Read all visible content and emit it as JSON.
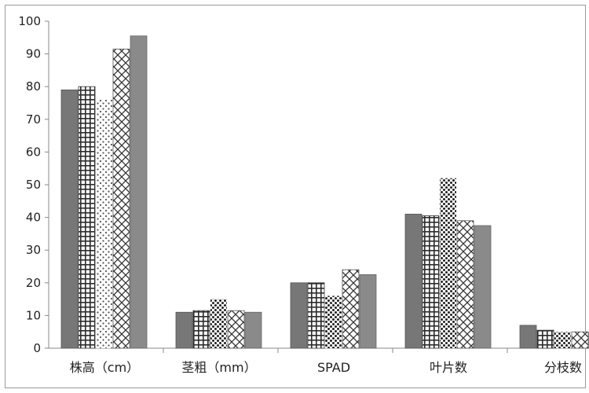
{
  "chart_data": {
    "type": "bar",
    "title": "",
    "xlabel": "",
    "ylabel": "",
    "ylim": [
      0,
      100
    ],
    "yticks": [
      0,
      10,
      20,
      30,
      40,
      50,
      60,
      70,
      80,
      90,
      100
    ],
    "categories": [
      "株高（cm）",
      "茎粗（mm）",
      "SPAD",
      "叶片数",
      "分枝数"
    ],
    "series": [
      {
        "pattern": "solid-dark",
        "color": "#7a7a7a",
        "values": [
          79,
          11,
          20,
          41,
          7
        ]
      },
      {
        "pattern": "grid",
        "color": "#333333",
        "values": [
          80,
          11.5,
          20,
          40.5,
          5.5
        ]
      },
      {
        "pattern": "dots-sparse",
        "color": "#444444",
        "values": [
          76,
          15,
          16,
          52,
          5
        ]
      },
      {
        "pattern": "crosshatch",
        "color": "#333333",
        "values": [
          91.5,
          11.5,
          24,
          39,
          5
        ]
      },
      {
        "pattern": "solid-light",
        "color": "#8c8c8c",
        "values": [
          95.5,
          11,
          22.5,
          37.5,
          5
        ]
      }
    ],
    "grid": false,
    "legend": "none"
  }
}
